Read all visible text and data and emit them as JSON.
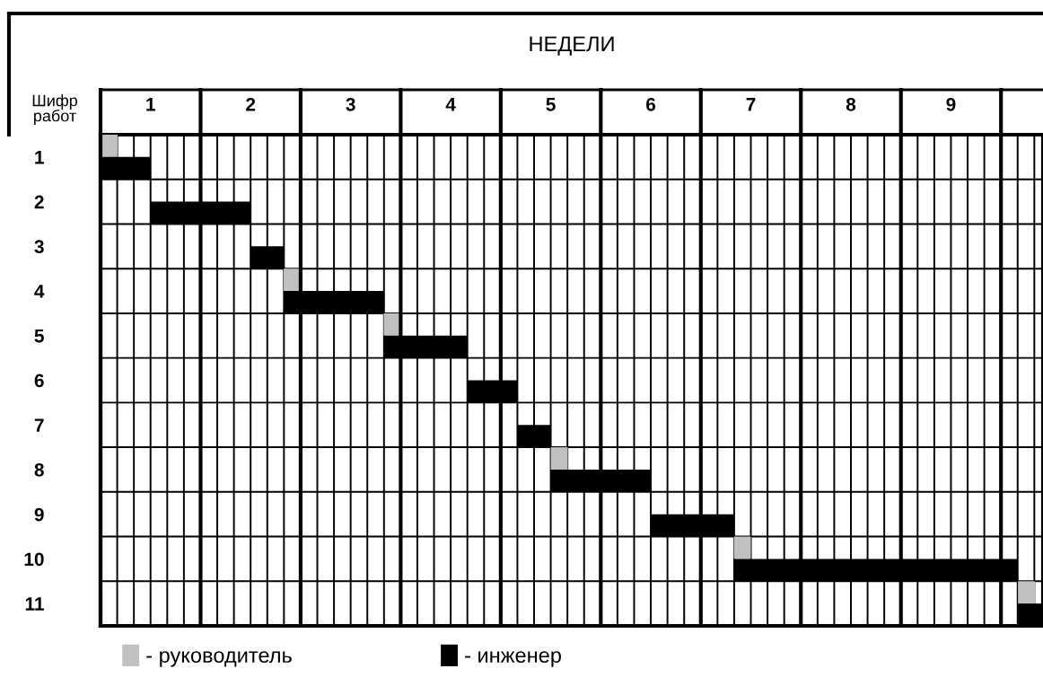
{
  "chart_data": {
    "type": "bar",
    "orientation": "horizontal",
    "stacked": false,
    "xlabel": "НЕДЕЛИ",
    "ylabel": "Шифр работ",
    "categories": [
      "1",
      "2",
      "3",
      "4",
      "5",
      "6",
      "7",
      "8",
      "9",
      "10",
      "11"
    ],
    "series": [
      {
        "name": "- руководитель",
        "color": "#c0c0c0",
        "base": [
          0.5,
          null,
          null,
          2.33,
          3.33,
          null,
          null,
          5.0,
          null,
          6.83,
          9.67
        ],
        "values": [
          0.17,
          null,
          null,
          0.17,
          0.17,
          null,
          null,
          0.17,
          null,
          0.17,
          0.17
        ]
      },
      {
        "name": "- инженер",
        "color": "#000000",
        "base": [
          0.5,
          1.0,
          2.0,
          2.33,
          3.33,
          4.17,
          4.67,
          5.0,
          6.0,
          6.83,
          9.67
        ],
        "values": [
          0.5,
          1.0,
          0.33,
          1.0,
          0.83,
          0.5,
          0.33,
          1.0,
          0.83,
          2.83,
          0.25
        ]
      }
    ],
    "xlim": [
      0.5,
      9.92
    ],
    "xticks": [
      1,
      2,
      3,
      4,
      5,
      6,
      7,
      8,
      9
    ],
    "grid": true,
    "legend": "bottom"
  }
}
